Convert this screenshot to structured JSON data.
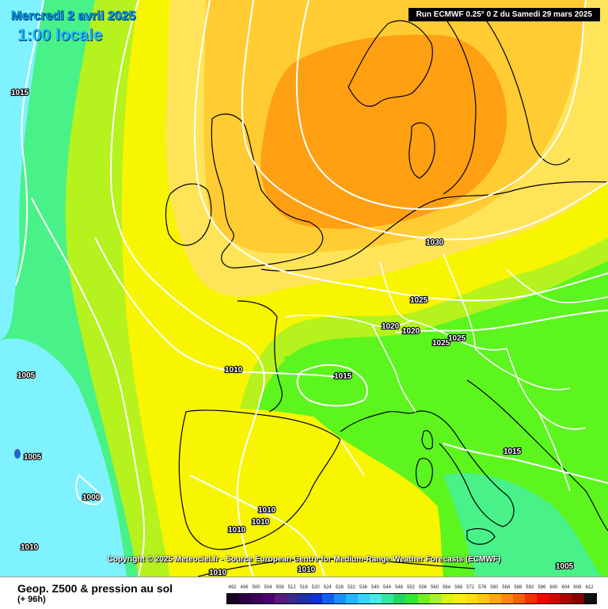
{
  "header": {
    "date": "Mercredi 2 avril 2025",
    "local_time": "1:00 locale",
    "run": "Run ECMWF 0.25° 0 Z du Samedi 29 mars 2025"
  },
  "copyright": "Copyright © 2025 Meteociel.fr - Source European Centre for Medium-Range Weather Forecasts (ECMWF)",
  "footer": {
    "title": "Geop. Z500 & pression au sol",
    "subtitle": "(+ 96h)"
  },
  "isobar_labels": [
    "1015",
    "1030",
    "1025",
    "1020",
    "1020",
    "1025",
    "1025",
    "1010",
    "1015",
    "1005",
    "1005",
    "1000",
    "1015",
    "1010",
    "1010",
    "1010",
    "1010",
    "1010",
    "1010",
    "1005"
  ],
  "colors": {
    "sea_cyan": "#7ff2ff",
    "green": "#5cf51e",
    "yellow_green": "#b5f21e",
    "yellow": "#f7f500",
    "light_yellow": "#ffe45a",
    "orange_light": "#ffcc33",
    "orange": "#ff9f12",
    "isobar": "#ffffff",
    "coast": "#000000"
  },
  "scale": {
    "ticks": [
      "492",
      "496",
      "500",
      "504",
      "508",
      "512",
      "516",
      "520",
      "524",
      "528",
      "532",
      "536",
      "540",
      "544",
      "548",
      "552",
      "556",
      "560",
      "564",
      "568",
      "572",
      "576",
      "580",
      "584",
      "588",
      "592",
      "596",
      "600",
      "604",
      "608",
      "612"
    ],
    "colors": [
      "#1a001f",
      "#2c0040",
      "#3d0058",
      "#4d0070",
      "#5a1a7a",
      "#3a2a8a",
      "#1a2fa8",
      "#1030d8",
      "#1060ff",
      "#1a90ff",
      "#20b8ff",
      "#30d8ff",
      "#40f0e8",
      "#30e8a0",
      "#20d860",
      "#30e830",
      "#70f020",
      "#a8f51e",
      "#d8f800",
      "#f8f000",
      "#ffe000",
      "#ffc800",
      "#ffa800",
      "#ff8800",
      "#ff6000",
      "#ff3000",
      "#ff0000",
      "#d80000",
      "#b00000",
      "#880000",
      "#101010"
    ]
  }
}
